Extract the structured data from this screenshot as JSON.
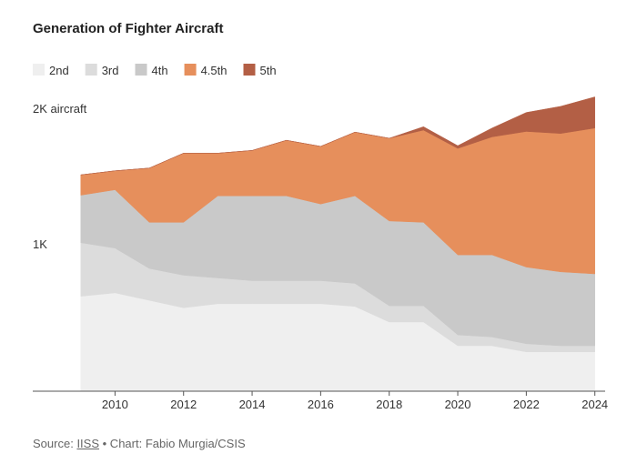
{
  "chart_data": {
    "type": "stacked_area",
    "title": "Generation of Fighter Aircraft",
    "x": [
      2009,
      2010,
      2011,
      2012,
      2013,
      2014,
      2015,
      2016,
      2017,
      2018,
      2019,
      2020,
      2021,
      2022,
      2023,
      2024
    ],
    "series": [
      {
        "name": "2nd",
        "color": "#efefef",
        "values": [
          700,
          725,
          670,
          615,
          645,
          645,
          645,
          645,
          625,
          510,
          510,
          335,
          335,
          290,
          290,
          290
        ]
      },
      {
        "name": "3rd",
        "color": "#dcdcdc",
        "values": [
          395,
          330,
          235,
          240,
          190,
          170,
          170,
          170,
          170,
          120,
          120,
          80,
          65,
          60,
          45,
          45
        ]
      },
      {
        "name": "4th",
        "color": "#c9c9c9",
        "values": [
          350,
          430,
          340,
          390,
          605,
          625,
          625,
          565,
          645,
          625,
          615,
          590,
          605,
          565,
          545,
          530
        ]
      },
      {
        "name": "4.5th",
        "color": "#e68f5c",
        "values": [
          150,
          140,
          400,
          510,
          315,
          335,
          410,
          425,
          470,
          610,
          680,
          785,
          870,
          1000,
          1020,
          1075
        ]
      },
      {
        "name": "5th",
        "color": "#b35f45",
        "values": [
          0,
          0,
          0,
          0,
          0,
          0,
          0,
          0,
          0,
          0,
          25,
          20,
          65,
          140,
          200,
          230
        ]
      }
    ],
    "xlim": [
      2007.6,
      2024.3
    ],
    "xticks": [
      2010,
      2012,
      2014,
      2016,
      2018,
      2020,
      2022,
      2024
    ],
    "ylim": [
      0,
      2200
    ],
    "yticks": [
      {
        "value": 1000,
        "label": "1K"
      },
      {
        "value": 2000,
        "label": "2K aircraft"
      }
    ],
    "legend": "top-left",
    "source_prefix": "Source:",
    "source_link": "IISS",
    "credit": "• Chart: Fabio Murgia/CSIS"
  }
}
